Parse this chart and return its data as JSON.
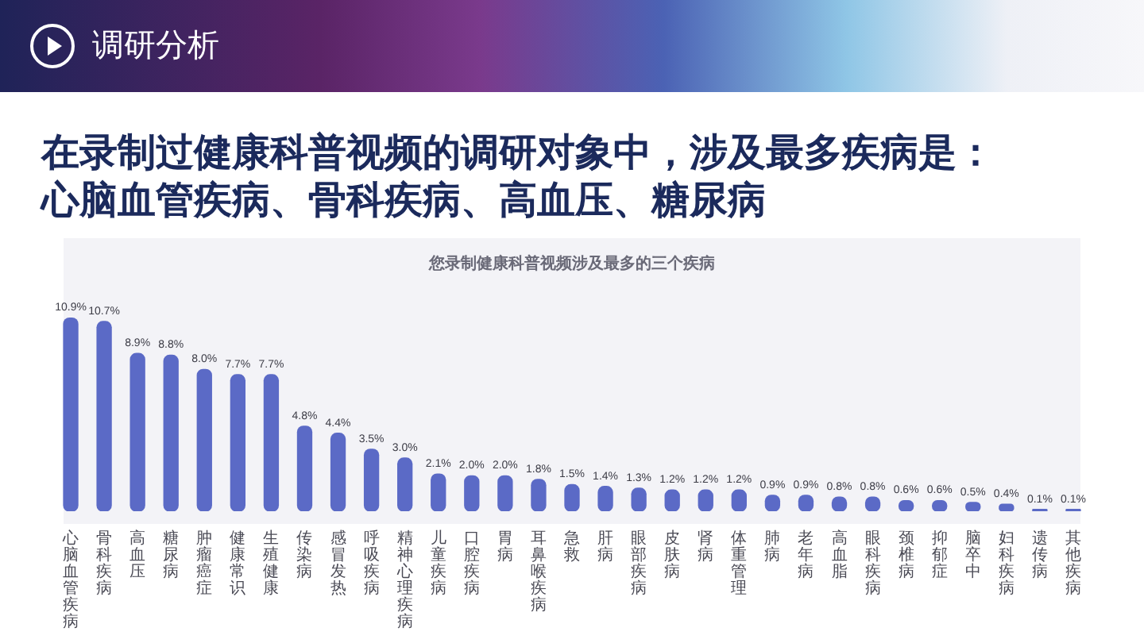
{
  "chart_data": {
    "type": "bar",
    "title": "在录制过健康科普视频的调研对象中，涉及最多疾病是：心脑血管疾病、骨科疾病、高血压、糖尿病",
    "subtitle": "您录制健康科普视频涉及最多的三个疾病",
    "annotations": [
      "调研分析"
    ],
    "categories": [
      "心脑血管疾病",
      "骨科疾病",
      "高血压",
      "糖尿病",
      "肿瘤癌症",
      "健康常识",
      "生殖健康",
      "传染病",
      "感冒发热",
      "呼吸疾病",
      "精神心理疾病",
      "儿童疾病",
      "口腔疾病",
      "胃病",
      "耳鼻喉疾病",
      "急救",
      "肝病",
      "眼部疾病",
      "皮肤病",
      "肾病",
      "体重管理",
      "肺病",
      "老年病",
      "高血脂",
      "眼科疾病",
      "颈椎病",
      "抑郁症",
      "脑卒中",
      "妇科疾病",
      "遗传病",
      "其他疾病"
    ],
    "values": [
      10.9,
      10.7,
      8.9,
      8.8,
      8.0,
      7.7,
      7.7,
      4.8,
      4.4,
      3.5,
      3.0,
      2.1,
      2.0,
      2.0,
      1.8,
      1.5,
      1.4,
      1.3,
      1.2,
      1.2,
      1.2,
      0.9,
      0.9,
      0.8,
      0.8,
      0.6,
      0.6,
      0.5,
      0.4,
      0.1,
      0.1
    ],
    "value_labels": [
      "10.9%",
      "10.7%",
      "8.9%",
      "8.8%",
      "8.0%",
      "7.7%",
      "7.7%",
      "4.8%",
      "4.4%",
      "3.5%",
      "3.0%",
      "2.1%",
      "2.0%",
      "2.0%",
      "1.8%",
      "1.5%",
      "1.4%",
      "1.3%",
      "1.2%",
      "1.2%",
      "1.2%",
      "0.9%",
      "0.9%",
      "0.8%",
      "0.8%",
      "0.6%",
      "0.6%",
      "0.5%",
      "0.4%",
      "0.1%",
      "0.1%"
    ],
    "color": "#5b6ac6"
  }
}
